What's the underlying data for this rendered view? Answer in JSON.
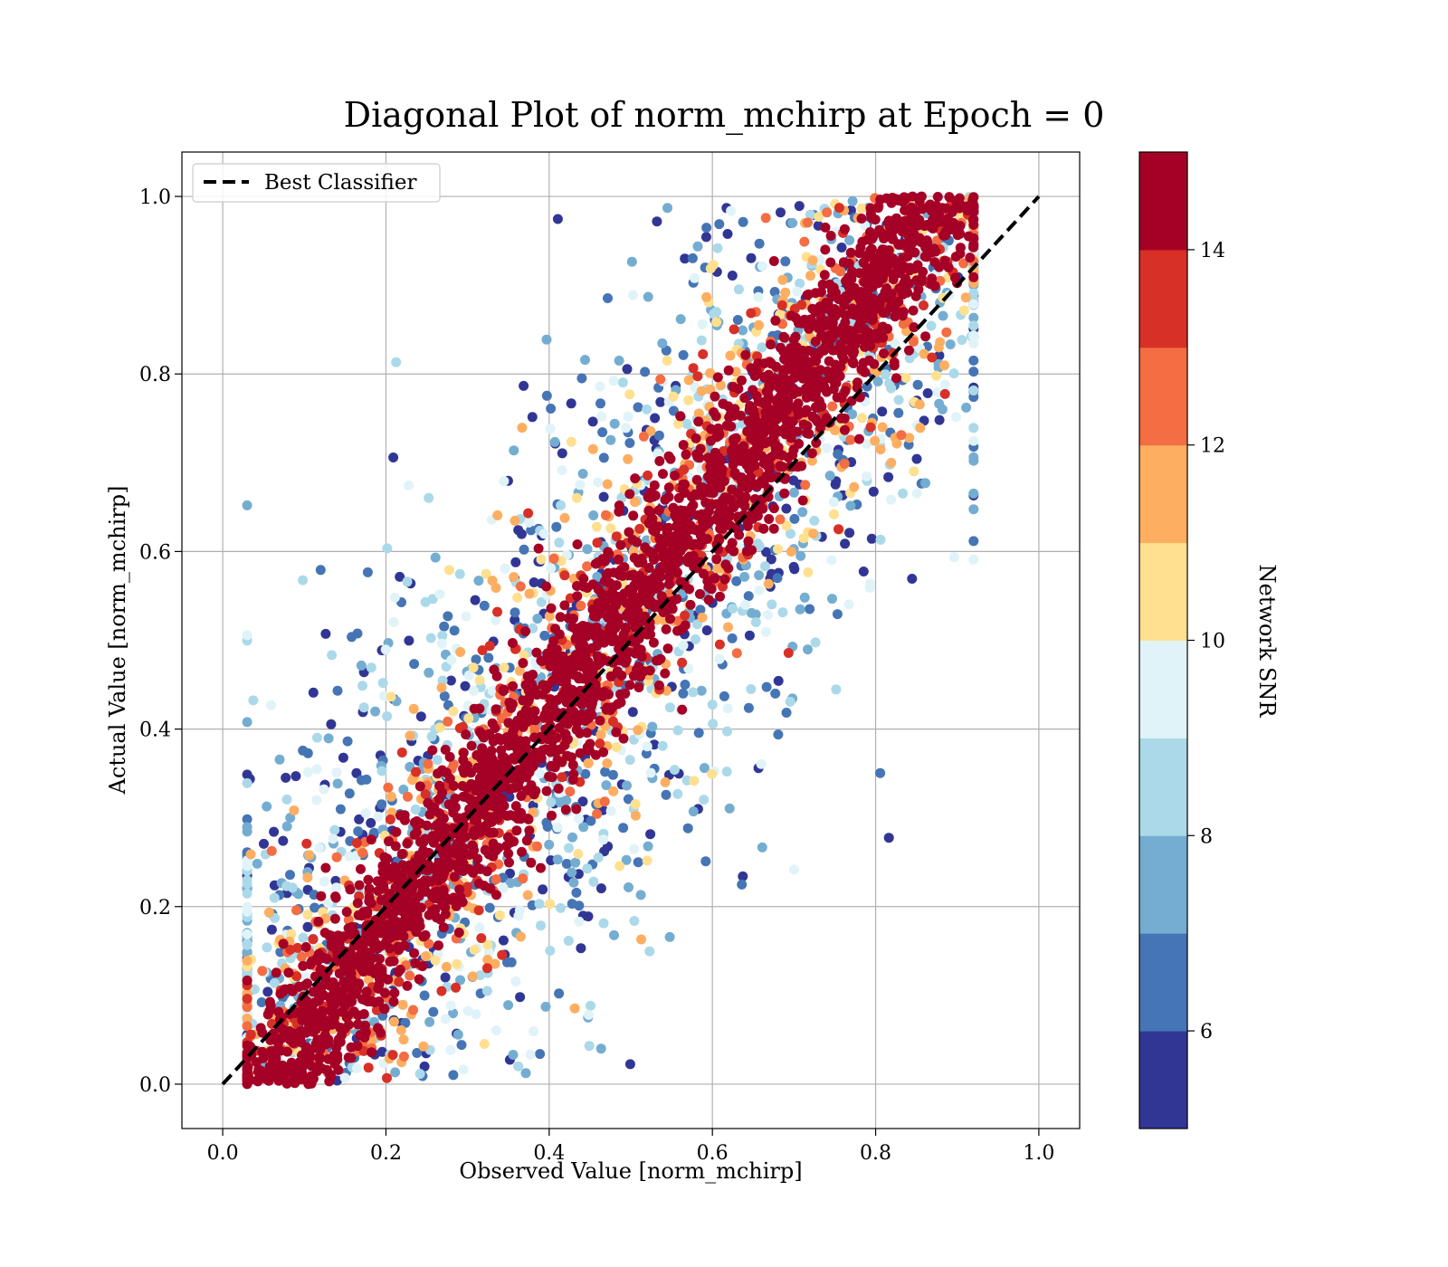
{
  "chart_data": {
    "type": "scatter",
    "title": "Diagonal Plot of norm_mchirp at Epoch = 0",
    "xlabel": "Observed Value [norm_mchirp]",
    "ylabel": "Actual Value [norm_mchirp]",
    "xlim": [
      -0.05,
      1.05
    ],
    "ylim": [
      -0.05,
      1.05
    ],
    "xticks": [
      "0.0",
      "0.2",
      "0.4",
      "0.6",
      "0.8",
      "1.0"
    ],
    "yticks": [
      "0.0",
      "0.2",
      "0.4",
      "0.6",
      "0.8",
      "1.0"
    ],
    "grid": true,
    "legend": {
      "position": "top-left",
      "entries": [
        "Best Classifier"
      ]
    },
    "reference_line": {
      "name": "Best Classifier",
      "x": [
        0.0,
        1.0
      ],
      "y": [
        0.0,
        1.0
      ],
      "style": "dashed",
      "color": "#000000"
    },
    "colorbar": {
      "label": "Network SNR",
      "range": [
        5,
        15
      ],
      "ticks": [
        "6",
        "8",
        "10",
        "12",
        "14"
      ],
      "tick_values": [
        6,
        8,
        10,
        12,
        14
      ],
      "colors": [
        "#313695",
        "#4575b4",
        "#74add1",
        "#abd9e9",
        "#e0f3f8",
        "#fee090",
        "#fdae61",
        "#f46d43",
        "#d73027",
        "#a50026"
      ]
    },
    "colormap_name": "RdYlBu_r",
    "approx_point_cloud": {
      "x_range": [
        0.03,
        0.92
      ],
      "y_range": [
        0.0,
        1.0
      ],
      "high_snr_band": "tight along y = x",
      "low_snr_spread": "wide scatter above and below the diagonal"
    }
  }
}
